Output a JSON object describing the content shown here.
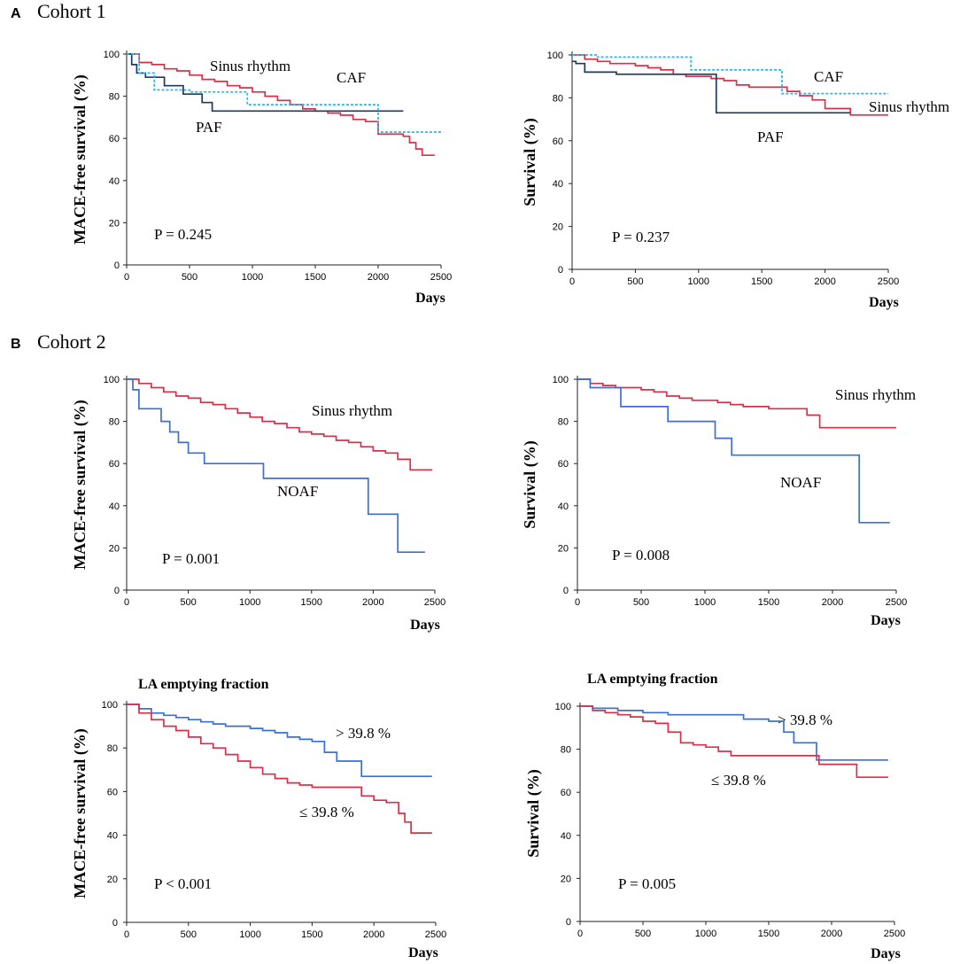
{
  "sections": [
    {
      "letter": "A",
      "title": "Cohort 1"
    },
    {
      "letter": "B",
      "title": "Cohort 2"
    }
  ],
  "colors": {
    "sinus": "#d9304a",
    "paf": "#1f3a5f",
    "caf": "#29b6e8",
    "blue": "#3a6fd8"
  },
  "chart_data": [
    {
      "type": "line",
      "title": "",
      "xlabel": "Days",
      "ylabel": "MACE-free survival (%)",
      "xlim": [
        0,
        2500
      ],
      "ylim": [
        0,
        100
      ],
      "xticks": [
        0,
        500,
        1000,
        1500,
        2000,
        2500
      ],
      "yticks": [
        0,
        20,
        40,
        60,
        80,
        100
      ],
      "pvalue": "P = 0.245",
      "series": [
        {
          "name": "Sinus rhythm",
          "color": "#d9304a",
          "dashed": false,
          "x": [
            0,
            100,
            200,
            300,
            400,
            500,
            600,
            700,
            800,
            900,
            1000,
            1100,
            1200,
            1300,
            1400,
            1500,
            1600,
            1700,
            1800,
            1900,
            2000,
            2100,
            2200,
            2250,
            2300,
            2350,
            2400,
            2450
          ],
          "y": [
            100,
            96,
            95,
            93,
            92,
            90,
            88,
            87,
            85,
            84,
            82,
            80,
            78,
            76,
            74,
            73,
            72,
            71,
            69,
            68,
            62,
            62,
            61,
            58,
            55,
            52,
            52,
            52
          ]
        },
        {
          "name": "PAF",
          "color": "#1f3a5f",
          "dashed": false,
          "x": [
            0,
            40,
            80,
            150,
            300,
            450,
            600,
            680,
            2200
          ],
          "y": [
            100,
            95,
            91,
            89,
            85,
            81,
            77,
            73,
            73
          ]
        },
        {
          "name": "CAF",
          "color": "#29b6e8",
          "dashed": true,
          "x": [
            0,
            100,
            220,
            500,
            960,
            1960,
            2000,
            2500
          ],
          "y": [
            100,
            91,
            83,
            82,
            76,
            76,
            63,
            63
          ]
        }
      ],
      "labels": [
        {
          "text": "Sinus rhythm"
        },
        {
          "text": "CAF"
        },
        {
          "text": "PAF"
        }
      ]
    },
    {
      "type": "line",
      "title": "",
      "xlabel": "Days",
      "ylabel": "Survival (%)",
      "xlim": [
        0,
        2500
      ],
      "ylim": [
        0,
        100
      ],
      "xticks": [
        0,
        500,
        1000,
        1500,
        2000,
        2500
      ],
      "yticks": [
        0,
        20,
        40,
        60,
        80,
        100
      ],
      "pvalue": "P = 0.237",
      "series": [
        {
          "name": "Sinus rhythm",
          "color": "#d9304a",
          "dashed": false,
          "x": [
            0,
            100,
            200,
            300,
            400,
            500,
            600,
            700,
            800,
            900,
            1000,
            1100,
            1200,
            1300,
            1400,
            1500,
            1600,
            1700,
            1800,
            1900,
            2000,
            2100,
            2200,
            2300,
            2400,
            2500
          ],
          "y": [
            100,
            98,
            97,
            96,
            96,
            95,
            94,
            93,
            91,
            90,
            90,
            89,
            88,
            86,
            85,
            85,
            85,
            83,
            81,
            79,
            75,
            75,
            72,
            72,
            72,
            72
          ]
        },
        {
          "name": "PAF",
          "color": "#1f3a5f",
          "dashed": false,
          "x": [
            0,
            30,
            100,
            350,
            1130,
            1140,
            2200
          ],
          "y": [
            97,
            96,
            92,
            91,
            91,
            73,
            73
          ]
        },
        {
          "name": "CAF",
          "color": "#29b6e8",
          "dashed": true,
          "x": [
            0,
            200,
            940,
            1640,
            1660,
            2500
          ],
          "y": [
            100,
            99,
            93,
            93,
            82,
            82
          ]
        }
      ],
      "labels": [
        {
          "text": "CAF"
        },
        {
          "text": "Sinus rhythm"
        },
        {
          "text": "PAF"
        }
      ]
    },
    {
      "type": "line",
      "title": "",
      "xlabel": "Days",
      "ylabel": "MACE-free survival (%)",
      "xlim": [
        0,
        2500
      ],
      "ylim": [
        0,
        100
      ],
      "xticks": [
        0,
        500,
        1000,
        1500,
        2000,
        2500
      ],
      "yticks": [
        0,
        20,
        40,
        60,
        80,
        100
      ],
      "pvalue": "P = 0.001",
      "series": [
        {
          "name": "Sinus rhythm",
          "color": "#d9304a",
          "dashed": false,
          "x": [
            0,
            100,
            200,
            300,
            400,
            500,
            600,
            700,
            800,
            900,
            1000,
            1100,
            1200,
            1300,
            1400,
            1500,
            1600,
            1700,
            1800,
            1900,
            2000,
            2100,
            2200,
            2300,
            2400,
            2480
          ],
          "y": [
            100,
            98,
            96,
            94,
            92,
            91,
            89,
            88,
            86,
            84,
            82,
            80,
            79,
            77,
            75,
            74,
            73,
            71,
            70,
            68,
            66,
            65,
            62,
            57,
            57,
            57
          ]
        },
        {
          "name": "NOAF",
          "color": "#3a6fd8",
          "dashed": false,
          "x": [
            0,
            50,
            100,
            280,
            350,
            420,
            500,
            630,
            1110,
            1960,
            2200,
            2420
          ],
          "y": [
            100,
            95,
            86,
            80,
            75,
            70,
            65,
            60,
            53,
            36,
            18,
            18
          ]
        }
      ],
      "labels": [
        {
          "text": "Sinus rhythm"
        },
        {
          "text": "NOAF"
        }
      ]
    },
    {
      "type": "line",
      "title": "",
      "xlabel": "Days",
      "ylabel": "Survival (%)",
      "xlim": [
        0,
        2500
      ],
      "ylim": [
        0,
        100
      ],
      "xticks": [
        0,
        500,
        1000,
        1500,
        2000,
        2500
      ],
      "yticks": [
        0,
        20,
        40,
        60,
        80,
        100
      ],
      "pvalue": "P = 0.008",
      "series": [
        {
          "name": "Sinus rhythm",
          "color": "#d9304a",
          "dashed": false,
          "x": [
            0,
            100,
            200,
            300,
            400,
            500,
            600,
            700,
            800,
            900,
            1000,
            1100,
            1200,
            1300,
            1400,
            1500,
            1600,
            1700,
            1800,
            1900,
            2000,
            2100,
            2200,
            2300,
            2400,
            2500
          ],
          "y": [
            100,
            98,
            97,
            96,
            96,
            95,
            94,
            92,
            91,
            90,
            90,
            89,
            88,
            87,
            87,
            86,
            86,
            86,
            83,
            77,
            77,
            77,
            77,
            77,
            77,
            77
          ]
        },
        {
          "name": "NOAF",
          "color": "#3a6fd8",
          "dashed": false,
          "x": [
            0,
            100,
            340,
            710,
            1080,
            1210,
            2210,
            2450
          ],
          "y": [
            100,
            96,
            87,
            80,
            72,
            64,
            32,
            32
          ]
        }
      ],
      "labels": [
        {
          "text": "Sinus rhythm"
        },
        {
          "text": "NOAF"
        }
      ]
    },
    {
      "type": "line",
      "title": "LA emptying fraction",
      "xlabel": "Days",
      "ylabel": "MACE-free survival (%)",
      "xlim": [
        0,
        2500
      ],
      "ylim": [
        0,
        100
      ],
      "xticks": [
        0,
        500,
        1000,
        1500,
        2000,
        2500
      ],
      "yticks": [
        0,
        20,
        40,
        60,
        80,
        100
      ],
      "pvalue": "P < 0.001",
      "series": [
        {
          "name": "> 39.8 %",
          "color": "#3a6fd8",
          "dashed": false,
          "x": [
            0,
            100,
            200,
            300,
            400,
            500,
            600,
            700,
            800,
            900,
            1000,
            1100,
            1200,
            1300,
            1400,
            1500,
            1600,
            1700,
            1800,
            1900,
            2000,
            2100,
            2200,
            2300,
            2400,
            2470
          ],
          "y": [
            100,
            98,
            96,
            95,
            94,
            93,
            92,
            91,
            90,
            90,
            89,
            88,
            87,
            85,
            84,
            83,
            78,
            74,
            74,
            67,
            67,
            67,
            67,
            67,
            67,
            67
          ]
        },
        {
          "name": "≤ 39.8 %",
          "color": "#d9304a",
          "dashed": false,
          "x": [
            0,
            100,
            200,
            300,
            400,
            500,
            600,
            700,
            800,
            900,
            1000,
            1100,
            1200,
            1300,
            1400,
            1500,
            1600,
            1700,
            1800,
            1900,
            2000,
            2100,
            2200,
            2250,
            2300,
            2350,
            2470
          ],
          "y": [
            100,
            96,
            93,
            90,
            88,
            85,
            82,
            80,
            77,
            74,
            71,
            68,
            66,
            64,
            63,
            62,
            62,
            62,
            62,
            58,
            56,
            55,
            50,
            46,
            41,
            41,
            41
          ]
        }
      ],
      "labels": [
        {
          "text": "> 39.8 %"
        },
        {
          "text": "≤ 39.8 %"
        }
      ]
    },
    {
      "type": "line",
      "title": "LA emptying fraction",
      "xlabel": "Days",
      "ylabel": "Survival (%)",
      "xlim": [
        0,
        2500
      ],
      "ylim": [
        0,
        100
      ],
      "xticks": [
        0,
        500,
        1000,
        1500,
        2000,
        2500
      ],
      "yticks": [
        0,
        20,
        40,
        60,
        80,
        100
      ],
      "pvalue": "P = 0.005",
      "series": [
        {
          "name": "> 39.8 %",
          "color": "#3a6fd8",
          "dashed": false,
          "x": [
            0,
            100,
            300,
            500,
            700,
            1000,
            1300,
            1500,
            1620,
            1700,
            1880,
            2000,
            2200,
            2450
          ],
          "y": [
            100,
            99,
            98,
            97,
            96,
            96,
            94,
            93,
            88,
            83,
            75,
            75,
            75,
            75
          ]
        },
        {
          "name": "≤ 39.8 %",
          "color": "#d9304a",
          "dashed": false,
          "x": [
            0,
            100,
            200,
            300,
            400,
            500,
            600,
            700,
            800,
            900,
            1000,
            1100,
            1200,
            1300,
            1400,
            1500,
            1600,
            1700,
            1800,
            1900,
            2000,
            2100,
            2200,
            2450
          ],
          "y": [
            100,
            98,
            97,
            96,
            95,
            93,
            92,
            88,
            83,
            82,
            81,
            79,
            77,
            77,
            77,
            77,
            77,
            77,
            77,
            73,
            73,
            73,
            67,
            67
          ]
        }
      ],
      "labels": [
        {
          "text": "> 39.8 %"
        },
        {
          "text": "≤ 39.8 %"
        }
      ]
    }
  ]
}
